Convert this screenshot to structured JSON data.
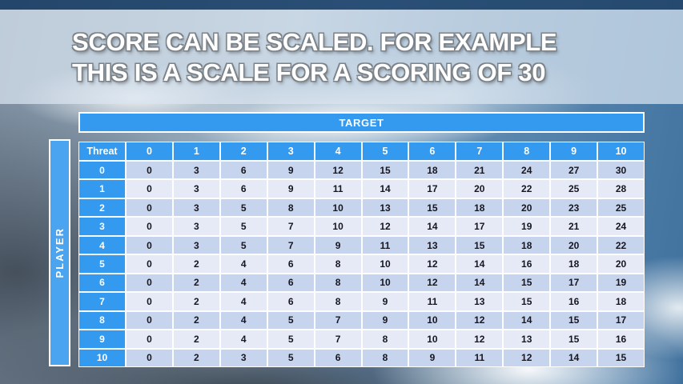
{
  "slide": {
    "title_line1": "SCORE CAN BE SCALED. FOR EXAMPLE",
    "title_line2": "THIS IS A SCALE FOR A SCORING OF 30"
  },
  "table": {
    "target_label": "TARGET",
    "player_label": "PLAYER",
    "corner_label": "Threat",
    "column_headers": [
      "0",
      "1",
      "2",
      "3",
      "4",
      "5",
      "6",
      "7",
      "8",
      "9",
      "10"
    ],
    "row_headers": [
      "0",
      "1",
      "2",
      "3",
      "4",
      "5",
      "6",
      "7",
      "8",
      "9",
      "10"
    ],
    "rows": [
      [
        0,
        3,
        6,
        9,
        12,
        15,
        18,
        21,
        24,
        27,
        30
      ],
      [
        0,
        3,
        6,
        9,
        11,
        14,
        17,
        20,
        22,
        25,
        28
      ],
      [
        0,
        3,
        5,
        8,
        10,
        13,
        15,
        18,
        20,
        23,
        25
      ],
      [
        0,
        3,
        5,
        7,
        10,
        12,
        14,
        17,
        19,
        21,
        24
      ],
      [
        0,
        3,
        5,
        7,
        9,
        11,
        13,
        15,
        18,
        20,
        22
      ],
      [
        0,
        2,
        4,
        6,
        8,
        10,
        12,
        14,
        16,
        18,
        20
      ],
      [
        0,
        2,
        4,
        6,
        8,
        10,
        12,
        14,
        15,
        17,
        19
      ],
      [
        0,
        2,
        4,
        6,
        8,
        9,
        11,
        13,
        15,
        16,
        18
      ],
      [
        0,
        2,
        4,
        5,
        7,
        9,
        10,
        12,
        14,
        15,
        17
      ],
      [
        0,
        2,
        4,
        5,
        7,
        8,
        10,
        12,
        13,
        15,
        16
      ],
      [
        0,
        2,
        3,
        5,
        6,
        8,
        9,
        11,
        12,
        14,
        15
      ]
    ]
  },
  "colors": {
    "accent_blue": "#339af0",
    "player_bar_blue": "#4aa4f0",
    "row_even": "#c7d4ee",
    "row_odd": "#e6eaf7",
    "top_strip_navy": "#264a6f",
    "title_text": "#ffffff",
    "title_outline_gray": "#7b8288",
    "body_text": "#16161f"
  },
  "chart_data": {
    "type": "table",
    "title": "Score scaling matrix for a scoring of 30",
    "x_axis_label": "TARGET",
    "y_axis_label": "PLAYER",
    "corner_label": "Threat",
    "columns": [
      "0",
      "1",
      "2",
      "3",
      "4",
      "5",
      "6",
      "7",
      "8",
      "9",
      "10"
    ],
    "rows": [
      "0",
      "1",
      "2",
      "3",
      "4",
      "5",
      "6",
      "7",
      "8",
      "9",
      "10"
    ],
    "values": [
      [
        0,
        3,
        6,
        9,
        12,
        15,
        18,
        21,
        24,
        27,
        30
      ],
      [
        0,
        3,
        6,
        9,
        11,
        14,
        17,
        20,
        22,
        25,
        28
      ],
      [
        0,
        3,
        5,
        8,
        10,
        13,
        15,
        18,
        20,
        23,
        25
      ],
      [
        0,
        3,
        5,
        7,
        10,
        12,
        14,
        17,
        19,
        21,
        24
      ],
      [
        0,
        3,
        5,
        7,
        9,
        11,
        13,
        15,
        18,
        20,
        22
      ],
      [
        0,
        2,
        4,
        6,
        8,
        10,
        12,
        14,
        16,
        18,
        20
      ],
      [
        0,
        2,
        4,
        6,
        8,
        10,
        12,
        14,
        15,
        17,
        19
      ],
      [
        0,
        2,
        4,
        6,
        8,
        9,
        11,
        13,
        15,
        16,
        18
      ],
      [
        0,
        2,
        4,
        5,
        7,
        9,
        10,
        12,
        14,
        15,
        17
      ],
      [
        0,
        2,
        4,
        5,
        7,
        8,
        10,
        12,
        13,
        15,
        16
      ],
      [
        0,
        2,
        3,
        5,
        6,
        8,
        9,
        11,
        12,
        14,
        15
      ]
    ]
  }
}
